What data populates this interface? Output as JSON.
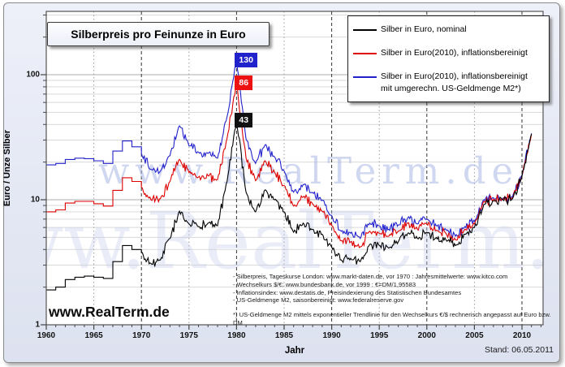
{
  "title": "Silberpreis pro Feinunze in Euro",
  "stand_label": "Stand: 06.05.2011",
  "watermark_center": "www.RealTerm.de",
  "watermark_corner": "www.RealTerm.de",
  "legend": {
    "items": [
      {
        "label": "Silber in Euro, nominal",
        "label2": "",
        "color": "#000000"
      },
      {
        "label": "Silber in Euro(2010), inflationsbereinigt",
        "label2": "",
        "color": "#dd0000"
      },
      {
        "label": "Silber in Euro(2010), inflationsbereinigt",
        "label2": "mit umgerechn. US-Geldmenge M2*)",
        "color": "#2222cc"
      }
    ]
  },
  "footnotes": {
    "sources": [
      "- Silberpreis, Tageskurse London: www.markt-daten.de, vor 1970 : Jahresmittelwerte: www.kitco.com",
      "- Wechselkurs $/€:  www.bundesbank.de, vor 1999 : €=DM/1,95583",
      "- Inflationsindex: www.destatis.de, Preisindexierung des Statistischen Bundesamtes",
      "- US-Geldmenge M2, saisonbereinigt: www.federalreserve.gov"
    ],
    "asterisk": "*) US-Geldmenge M2 mittels exponentieller Trendlinie für den Wechselkurs €/$ rechnerisch angepasst auf Euro bzw. DM"
  },
  "chart_data": {
    "type": "line",
    "title": "Silberpreis pro Feinunze in Euro",
    "xlabel": "Jahr",
    "ylabel": "Euro / Unze Silber",
    "x_axis": {
      "min": 1960,
      "max": 2012,
      "ticks": [
        1960,
        1965,
        1970,
        1975,
        1980,
        1985,
        1990,
        1995,
        2000,
        2005,
        2010
      ]
    },
    "y_axis": {
      "scale": "log",
      "min": 1,
      "max": 316,
      "ticks": [
        1,
        10,
        100
      ],
      "tick_labels": [
        "1",
        "10",
        "100"
      ]
    },
    "grid": true,
    "legend_position": "top-right",
    "step_until": 1970,
    "years": [
      1960,
      1961,
      1962,
      1963,
      1964,
      1965,
      1966,
      1967,
      1968,
      1969,
      1970,
      1971,
      1972,
      1973,
      1974,
      1975,
      1976,
      1977,
      1978,
      1979,
      1980,
      1981,
      1982,
      1983,
      1984,
      1985,
      1986,
      1987,
      1988,
      1989,
      1990,
      1991,
      1992,
      1993,
      1994,
      1995,
      1996,
      1997,
      1998,
      1999,
      2000,
      2001,
      2002,
      2003,
      2004,
      2005,
      2006,
      2007,
      2008,
      2009,
      2010,
      2011
    ],
    "series": [
      {
        "name": "Silber in Euro, nominal",
        "color": "#000000",
        "values": [
          1.9,
          2.0,
          2.3,
          2.4,
          2.45,
          2.4,
          2.35,
          3.2,
          4.3,
          4.0,
          3.8,
          3.1,
          3.3,
          4.9,
          8.1,
          6.4,
          6.1,
          6.5,
          6.2,
          14.0,
          43.0,
          11.5,
          8.0,
          12.0,
          10.0,
          8.0,
          5.5,
          6.5,
          5.8,
          5.3,
          4.2,
          3.3,
          3.4,
          3.2,
          4.4,
          4.3,
          4.1,
          4.6,
          5.4,
          4.9,
          5.5,
          5.0,
          4.8,
          4.3,
          5.3,
          6.0,
          9.2,
          9.8,
          10.0,
          10.2,
          15.5,
          33.5
        ]
      },
      {
        "name": "Silber in Euro(2010), inflationsbereinigt",
        "color": "#dd0000",
        "values": [
          8.0,
          8.3,
          9.4,
          9.7,
          9.7,
          9.3,
          8.9,
          11.9,
          15.0,
          14.0,
          12.6,
          10.0,
          10.2,
          14.0,
          21.0,
          16.5,
          15.2,
          15.6,
          14.5,
          31.0,
          86.0,
          21.5,
          14.2,
          20.5,
          16.6,
          13.0,
          8.9,
          10.5,
          9.2,
          8.1,
          6.2,
          4.7,
          4.6,
          4.2,
          5.6,
          5.4,
          5.1,
          5.6,
          6.5,
          5.8,
          6.4,
          5.7,
          5.4,
          4.8,
          5.8,
          6.4,
          9.7,
          10.1,
          10.1,
          10.3,
          15.5,
          33.5
        ]
      },
      {
        "name": "Silber in Euro(2010), inflationsbereinigt mit umgerechn. US-Geldmenge M2*)",
        "color": "#2222cc",
        "values": [
          19.0,
          19.5,
          21.0,
          21.5,
          21.3,
          20.5,
          19.5,
          24.5,
          29.5,
          26.5,
          23.5,
          17.5,
          17.0,
          22.5,
          39.0,
          27.0,
          24.0,
          23.5,
          21.5,
          46.0,
          130.0,
          30.5,
          19.5,
          27.5,
          22.0,
          17.0,
          11.5,
          13.2,
          11.4,
          9.9,
          7.5,
          5.6,
          5.4,
          4.9,
          6.5,
          6.2,
          5.8,
          6.3,
          7.2,
          6.4,
          7.0,
          6.2,
          5.8,
          5.1,
          6.1,
          6.7,
          10.0,
          10.4,
          10.3,
          10.5,
          15.7,
          34.0
        ]
      }
    ],
    "annotations": [
      {
        "text": "130",
        "value": 130,
        "year": 1980,
        "bg": "#2222cc"
      },
      {
        "text": "86",
        "value": 86,
        "year": 1980,
        "bg": "#ee1111"
      },
      {
        "text": "43",
        "value": 43,
        "year": 1980,
        "bg": "#111111"
      }
    ]
  }
}
